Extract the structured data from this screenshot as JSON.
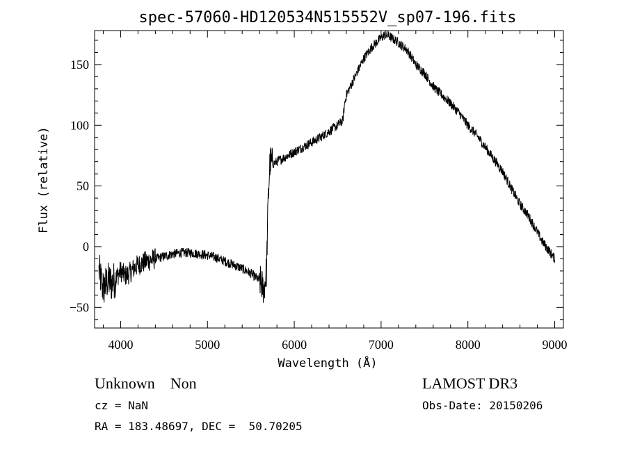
{
  "chart_data": {
    "type": "line",
    "title": "spec-57060-HD120534N515552V_sp07-196.fits",
    "xlabel": "Wavelength (Å)",
    "ylabel": "Flux (relative)",
    "xlim": [
      3700,
      9100
    ],
    "ylim": [
      -67,
      178
    ],
    "xticks": [
      4000,
      5000,
      6000,
      7000,
      8000,
      9000
    ],
    "yticks": [
      -50,
      0,
      50,
      100,
      150
    ],
    "grid": false,
    "series": [
      {
        "x": [
          3750,
          3800,
          3850,
          3900,
          3950,
          4000,
          4050,
          4100,
          4150,
          4200,
          4300,
          4400,
          4500,
          4600,
          4700,
          4800,
          4900,
          5000,
          5100,
          5200,
          5300,
          5400,
          5500,
          5550,
          5600,
          5650,
          5680,
          5700,
          5720,
          5750,
          5800,
          5900,
          6000,
          6100,
          6200,
          6300,
          6400,
          6500,
          6560,
          6580,
          6600,
          6700,
          6800,
          6900,
          7000,
          7050,
          7100,
          7200,
          7300,
          7400,
          7500,
          7600,
          7650,
          7700,
          7800,
          7900,
          8000,
          8100,
          8200,
          8300,
          8400,
          8500,
          8600,
          8700,
          8800,
          8850,
          8900,
          8950,
          9000
        ],
        "y": [
          -20,
          -35,
          -28,
          -30,
          -25,
          -20,
          -24,
          -22,
          -18,
          -15,
          -12,
          -10,
          -8,
          -6,
          -5,
          -5,
          -6,
          -7,
          -9,
          -12,
          -15,
          -18,
          -22,
          -25,
          -28,
          -35,
          -20,
          40,
          70,
          68,
          70,
          74,
          78,
          82,
          86,
          90,
          95,
          100,
          104,
          118,
          125,
          140,
          155,
          165,
          172,
          175,
          173,
          168,
          162,
          150,
          143,
          132,
          128,
          125,
          118,
          110,
          100,
          92,
          82,
          72,
          62,
          48,
          35,
          25,
          12,
          5,
          0,
          -5,
          -10
        ]
      }
    ]
  },
  "footer": {
    "left_line1": "Unknown    Non",
    "left_line2": "cz = NaN",
    "left_line3": "RA = 183.48697, DEC =  50.70205",
    "right_line1": "LAMOST DR3",
    "right_line2": "Obs-Date: 20150206"
  }
}
